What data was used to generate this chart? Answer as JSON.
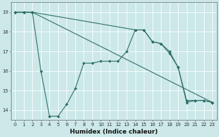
{
  "xlabel": "Humidex (Indice chaleur)",
  "bg_color": "#cce8e8",
  "line_color": "#2d6e65",
  "grid_color": "#ffffff",
  "xlim": [
    -0.5,
    23.5
  ],
  "ylim": [
    13.5,
    19.5
  ],
  "yticks": [
    14,
    15,
    16,
    17,
    18,
    19
  ],
  "xticks": [
    0,
    1,
    2,
    3,
    4,
    5,
    6,
    7,
    8,
    9,
    10,
    11,
    12,
    13,
    14,
    15,
    16,
    17,
    18,
    19,
    20,
    21,
    22,
    23
  ],
  "line1_x": [
    0,
    1,
    2,
    3,
    4,
    5,
    6,
    7,
    8,
    9,
    10,
    11,
    12,
    13,
    14,
    15,
    16,
    17,
    18,
    19,
    20,
    21,
    22,
    23
  ],
  "line1_y": [
    19.0,
    19.0,
    19.0,
    16.0,
    13.7,
    13.7,
    14.3,
    15.1,
    16.4,
    16.4,
    16.5,
    16.5,
    16.5,
    17.0,
    18.1,
    18.1,
    17.5,
    17.4,
    17.0,
    16.2,
    14.4,
    14.5,
    14.5,
    14.4
  ],
  "line2_x": [
    0,
    1,
    2,
    23
  ],
  "line2_y": [
    19.0,
    19.0,
    19.0,
    14.4
  ],
  "line3_x": [
    0,
    1,
    2,
    14,
    15,
    16,
    17,
    18,
    19,
    20,
    21,
    22,
    23
  ],
  "line3_y": [
    19.0,
    19.0,
    19.0,
    18.1,
    18.1,
    17.5,
    17.4,
    16.9,
    16.2,
    14.5,
    14.5,
    14.5,
    14.4
  ],
  "tick_labelsize": 5.0,
  "xlabel_fontsize": 6.5
}
